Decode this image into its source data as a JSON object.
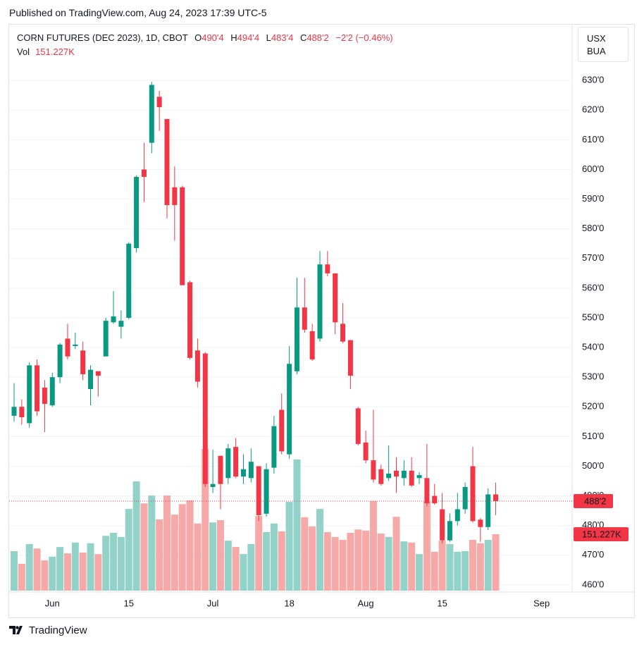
{
  "header": {
    "published": "Published on TradingView.com, Aug 24, 2023 17:39 UTC-5",
    "symbol": "CORN FUTURES (DEC 2023), 1D, CBOT",
    "ohlc": [
      {
        "key": "O",
        "value": "490'4"
      },
      {
        "key": "H",
        "value": "494'4"
      },
      {
        "key": "L",
        "value": "483'4"
      },
      {
        "key": "C",
        "value": "488'2"
      }
    ],
    "change": "−2'2 (−0.46%)",
    "volume_key": "Vol",
    "currency": [
      "USX",
      "BUA"
    ],
    "logo": "TradingView"
  },
  "chart_data": {
    "type": "candlestick",
    "categories": [
      null,
      null,
      null,
      null,
      null,
      "Jun",
      null,
      null,
      null,
      null,
      null,
      null,
      null,
      null,
      null,
      "15",
      null,
      null,
      null,
      null,
      null,
      null,
      null,
      null,
      null,
      null,
      "Jul",
      null,
      null,
      null,
      null,
      null,
      null,
      null,
      null,
      null,
      "18",
      null,
      null,
      null,
      null,
      null,
      null,
      null,
      null,
      null,
      "Aug",
      null,
      null,
      null,
      null,
      null,
      null,
      null,
      null,
      null,
      "15",
      null,
      null,
      null,
      null,
      null,
      null,
      null,
      null,
      null,
      null,
      null,
      null,
      "Sep"
    ],
    "open": [
      517,
      520,
      514.5,
      534,
      526.5,
      520.5,
      530,
      543,
      540.5,
      539,
      526,
      532,
      537,
      548.5,
      547,
      550,
      573.5,
      600,
      609,
      624.5,
      617,
      594,
      594,
      562,
      539,
      538,
      493,
      503.5,
      496,
      506.5,
      496.5,
      496,
      500,
      484,
      499.5,
      519,
      504,
      532,
      553.5,
      545.5,
      543,
      568,
      565,
      548,
      542.5,
      519.5,
      508,
      502,
      499,
      496,
      498.5,
      496,
      498.5,
      496,
      496,
      490,
      485.5,
      475,
      481.5,
      485.5,
      500,
      482,
      479.5,
      490.5,
      null,
      null,
      null,
      null,
      null,
      null
    ],
    "high": [
      528,
      522.5,
      535,
      536,
      529,
      531.5,
      541.5,
      548,
      545,
      542,
      534,
      532,
      550,
      559,
      552.5,
      575.5,
      598,
      609,
      629.5,
      626.5,
      617,
      601,
      594.5,
      562.5,
      543,
      538.5,
      505.5,
      503.5,
      507.5,
      509.5,
      504,
      506,
      500,
      501,
      517,
      524.5,
      540.5,
      563.5,
      563.5,
      548,
      572.5,
      572.5,
      565,
      555,
      542.5,
      520,
      512,
      519,
      500.5,
      507,
      503,
      502,
      503,
      498,
      507.5,
      494,
      491,
      484,
      491,
      494.5,
      506.5,
      482.5,
      492.5,
      494.5,
      null,
      null,
      null,
      null,
      null,
      null
    ],
    "low": [
      515,
      514,
      513,
      517,
      511.5,
      520,
      528,
      536,
      539.5,
      529,
      520.5,
      523.5,
      537,
      548,
      543,
      549.5,
      572,
      589,
      605.5,
      613,
      583.5,
      576,
      561,
      536,
      526.5,
      493,
      491,
      485.5,
      494,
      496,
      494,
      494.5,
      481.5,
      483,
      497.5,
      504,
      502.5,
      531,
      545,
      535.5,
      542,
      564,
      544.5,
      541.5,
      526,
      507,
      501,
      494.5,
      493.5,
      495,
      491,
      493.5,
      493,
      494,
      486.5,
      487,
      474,
      474.5,
      480,
      484,
      481,
      474.5,
      478.5,
      483.5,
      null,
      null,
      null,
      null,
      null,
      null
    ],
    "close": [
      520,
      516.5,
      534,
      518.5,
      521,
      530,
      541,
      537,
      541,
      531,
      532.5,
      530.5,
      549,
      550.5,
      549,
      575,
      597.5,
      597.5,
      628.5,
      621,
      588,
      588,
      561,
      536.5,
      528.5,
      494,
      494,
      494,
      506,
      496.5,
      499,
      501.5,
      483.5,
      499,
      513.5,
      505,
      534.5,
      553.5,
      546,
      536,
      568,
      565,
      548.5,
      542,
      530.5,
      507.5,
      502,
      495.5,
      494,
      497.5,
      496.5,
      498.5,
      493.5,
      497,
      487.5,
      487.5,
      475,
      481.5,
      485.5,
      493,
      481.5,
      479.5,
      490.5,
      488.25,
      null,
      null,
      null,
      null,
      null,
      null
    ],
    "last_close_label": "488'2",
    "volume": {
      "name": "Vol",
      "values": [
        106000,
        72000,
        125000,
        113000,
        81000,
        91000,
        117000,
        100000,
        129000,
        102000,
        127000,
        98000,
        147000,
        155000,
        144000,
        219000,
        293000,
        234000,
        255000,
        191000,
        255000,
        204000,
        232000,
        242000,
        180000,
        380000,
        183000,
        189000,
        134000,
        117000,
        98000,
        125000,
        200000,
        157000,
        180000,
        159000,
        238000,
        352000,
        197000,
        172000,
        219000,
        157000,
        144000,
        136000,
        155000,
        164000,
        161000,
        240000,
        153000,
        144000,
        198000,
        132000,
        129000,
        98000,
        238000,
        104000,
        134000,
        125000,
        104000,
        106000,
        136000,
        127000,
        136000,
        151227,
        null,
        null,
        null,
        null,
        null,
        null
      ],
      "last_label": "151.227K"
    },
    "ylim": [
      457.6,
      648.8
    ],
    "yticks": [
      {
        "value": 460,
        "label": "460'0"
      },
      {
        "value": 470,
        "label": "470'0"
      },
      {
        "value": 480,
        "label": "480'0"
      },
      {
        "value": 490,
        "label": "490'0"
      },
      {
        "value": 500,
        "label": "500'0"
      },
      {
        "value": 510,
        "label": "510'0"
      },
      {
        "value": 520,
        "label": "520'0"
      },
      {
        "value": 530,
        "label": "530'0"
      },
      {
        "value": 540,
        "label": "540'0"
      },
      {
        "value": 550,
        "label": "550'0"
      },
      {
        "value": 560,
        "label": "560'0"
      },
      {
        "value": 570,
        "label": "570'0"
      },
      {
        "value": 580,
        "label": "580'0"
      },
      {
        "value": 590,
        "label": "590'0"
      },
      {
        "value": 600,
        "label": "600'0"
      },
      {
        "value": 610,
        "label": "610'0"
      },
      {
        "value": 620,
        "label": "620'0"
      },
      {
        "value": 630,
        "label": "630'0"
      }
    ],
    "grid": true,
    "up_color": "#089981",
    "down_color": "#f23645",
    "volume_up_color": "#92d2c9",
    "volume_down_color": "#f7a9a7"
  }
}
